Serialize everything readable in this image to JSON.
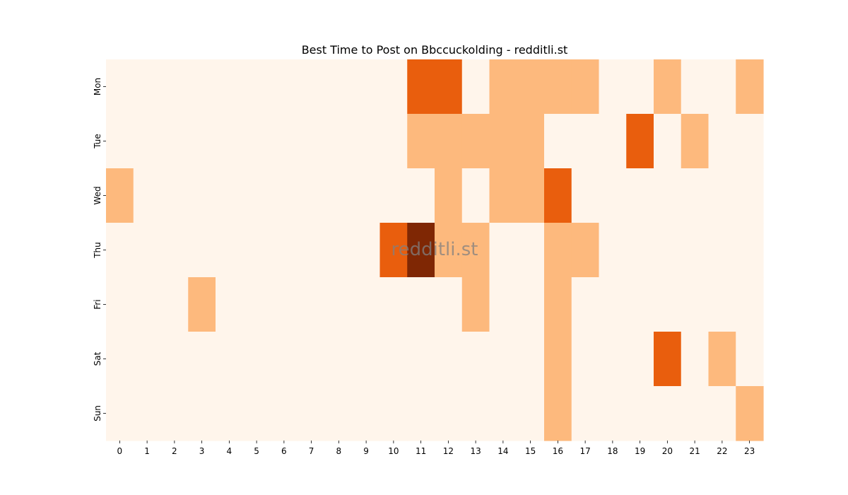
{
  "chart_data": {
    "type": "heatmap",
    "title": "Best Time to Post on Bbccuckolding - redditli.st",
    "watermark": "redditli.st",
    "xlabel": "",
    "ylabel": "",
    "x_labels": [
      "0",
      "1",
      "2",
      "3",
      "4",
      "5",
      "6",
      "7",
      "8",
      "9",
      "10",
      "11",
      "12",
      "13",
      "14",
      "15",
      "16",
      "17",
      "18",
      "19",
      "20",
      "21",
      "22",
      "23"
    ],
    "y_labels": [
      "Mon",
      "Tue",
      "Wed",
      "Thu",
      "Fri",
      "Sat",
      "Sun"
    ],
    "values": [
      [
        0,
        0,
        0,
        0,
        0,
        0,
        0,
        0,
        0,
        0,
        0,
        2,
        2,
        0,
        1,
        1,
        1,
        1,
        0,
        0,
        1,
        0,
        0,
        1
      ],
      [
        0,
        0,
        0,
        0,
        0,
        0,
        0,
        0,
        0,
        0,
        0,
        1,
        1,
        1,
        1,
        1,
        0,
        0,
        0,
        2,
        0,
        1,
        0,
        0
      ],
      [
        1,
        0,
        0,
        0,
        0,
        0,
        0,
        0,
        0,
        0,
        0,
        0,
        1,
        0,
        1,
        1,
        2,
        0,
        0,
        0,
        0,
        0,
        0,
        0
      ],
      [
        0,
        0,
        0,
        0,
        0,
        0,
        0,
        0,
        0,
        0,
        2,
        3,
        1,
        1,
        0,
        0,
        1,
        1,
        0,
        0,
        0,
        0,
        0,
        0
      ],
      [
        0,
        0,
        0,
        1,
        0,
        0,
        0,
        0,
        0,
        0,
        0,
        0,
        0,
        1,
        0,
        0,
        1,
        0,
        0,
        0,
        0,
        0,
        0,
        0
      ],
      [
        0,
        0,
        0,
        0,
        0,
        0,
        0,
        0,
        0,
        0,
        0,
        0,
        0,
        0,
        0,
        0,
        1,
        0,
        0,
        0,
        2,
        0,
        1,
        0
      ],
      [
        0,
        0,
        0,
        0,
        0,
        0,
        0,
        0,
        0,
        0,
        0,
        0,
        0,
        0,
        0,
        0,
        1,
        0,
        0,
        0,
        0,
        0,
        0,
        1
      ]
    ],
    "value_range": [
      0,
      3
    ],
    "colormap": [
      "#fff5eb",
      "#fdb97d",
      "#e95e0d",
      "#7f2704"
    ],
    "grid": false,
    "legend": "none"
  }
}
